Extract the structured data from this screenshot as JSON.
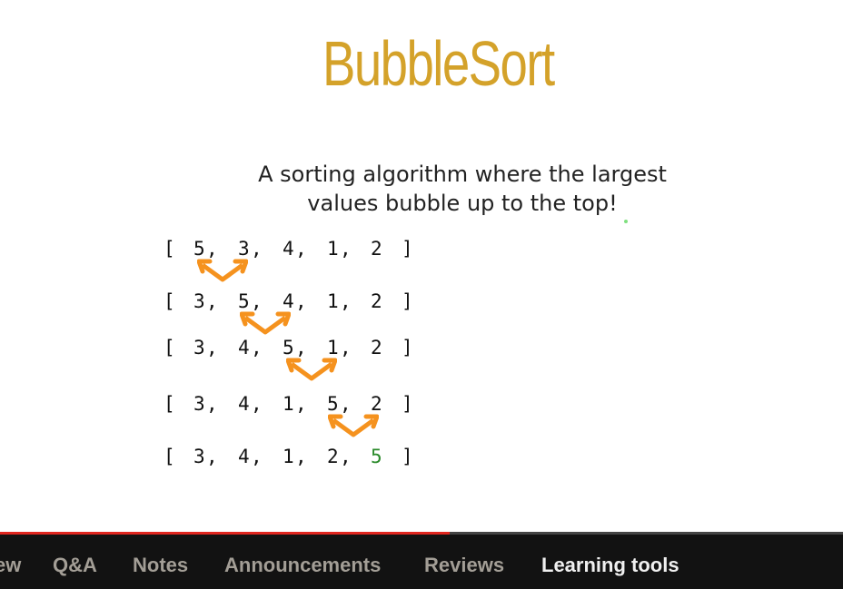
{
  "slide": {
    "title": "BubbleSort",
    "subtitle_line1": "A sorting algorithm where the largest",
    "subtitle_line2": "values bubble up to the top!",
    "rows": [
      [
        "5",
        "3",
        "4",
        "1",
        "2"
      ],
      [
        "3",
        "5",
        "4",
        "1",
        "2"
      ],
      [
        "3",
        "4",
        "5",
        "1",
        "2"
      ],
      [
        "3",
        "4",
        "1",
        "5",
        "2"
      ],
      [
        "3",
        "4",
        "1",
        "2",
        "5"
      ]
    ],
    "open_bracket": "[",
    "close_bracket": "]",
    "comma": ",",
    "sorted_color": "#2a8a2a",
    "arrow_color": "#f5921e",
    "title_color": "#d4a22a"
  },
  "player": {
    "progress": 0.533
  },
  "tabs": {
    "overview": "ew",
    "qa": "Q&A",
    "notes": "Notes",
    "announcements": "Announcements",
    "reviews": "Reviews",
    "learning_tools": "Learning tools"
  }
}
